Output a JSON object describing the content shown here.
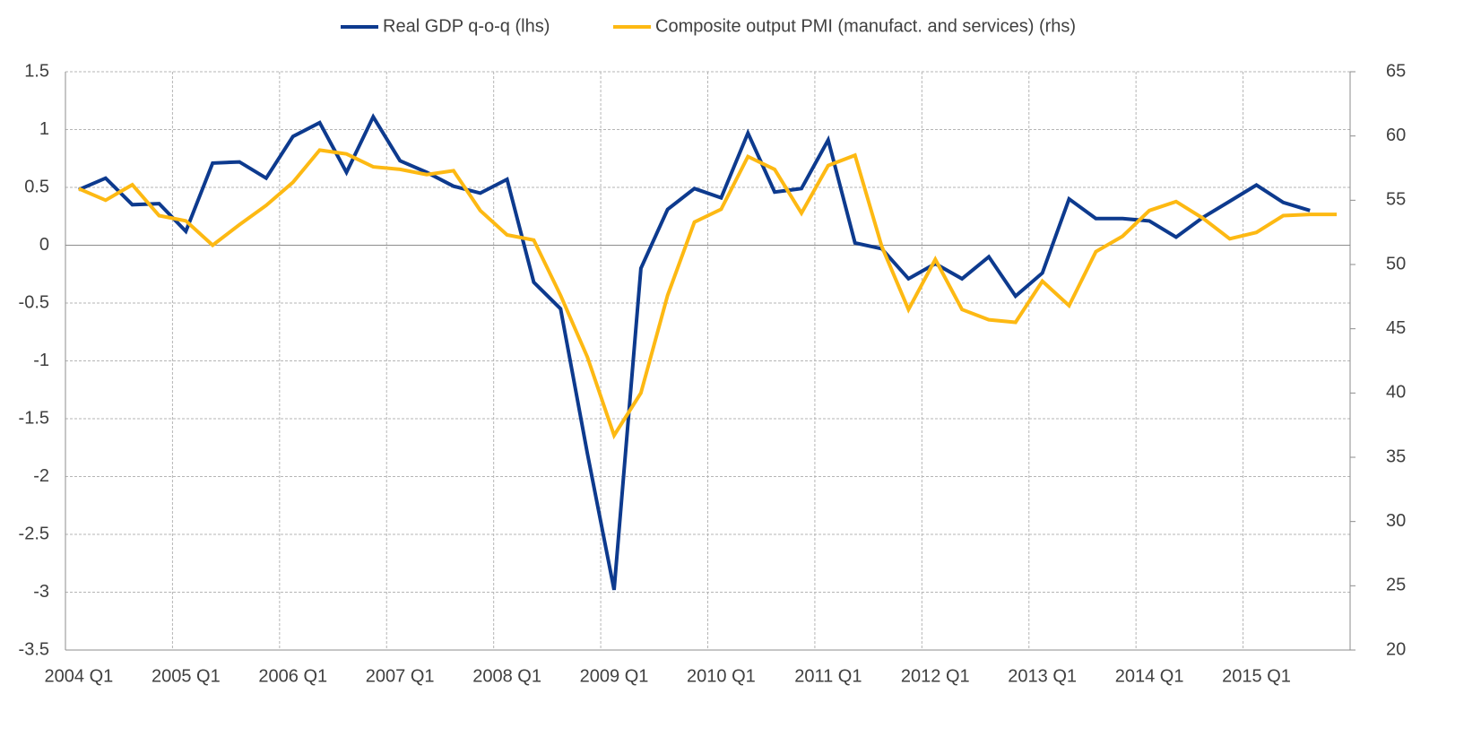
{
  "chart_data": {
    "type": "line",
    "legend": "top",
    "grid": true,
    "categories": [
      "2004 Q1",
      null,
      null,
      null,
      "2005 Q1",
      null,
      null,
      null,
      "2006 Q1",
      null,
      null,
      null,
      "2007 Q1",
      null,
      null,
      null,
      "2008 Q1",
      null,
      null,
      null,
      "2009 Q1",
      null,
      null,
      null,
      "2010 Q1",
      null,
      null,
      null,
      "2011 Q1",
      null,
      null,
      null,
      "2012 Q1",
      null,
      null,
      null,
      "2013 Q1",
      null,
      null,
      null,
      "2014 Q1",
      null,
      null,
      null,
      "2015 Q1",
      null,
      null,
      null
    ],
    "series": [
      {
        "name": "Real GDP q-o-q (lhs)",
        "color": "#0d3a8e",
        "axis": "y",
        "values": [
          0.48,
          0.58,
          0.35,
          0.36,
          0.12,
          0.71,
          0.72,
          0.58,
          0.94,
          1.06,
          0.63,
          1.11,
          0.73,
          0.63,
          0.51,
          0.45,
          0.57,
          -0.32,
          -0.55,
          -1.8,
          -2.98,
          -0.2,
          0.31,
          0.49,
          0.41,
          0.97,
          0.46,
          0.49,
          0.91,
          0.02,
          -0.03,
          -0.29,
          -0.16,
          -0.29,
          -0.1,
          -0.44,
          -0.24,
          0.4,
          0.23,
          0.23,
          0.21,
          0.07,
          0.24,
          0.38,
          0.52,
          0.37,
          0.3,
          null
        ]
      },
      {
        "name": "Composite output PMI (manufact. and services) (rhs)",
        "color": "#fdb913",
        "axis": "y2",
        "values": [
          55.9,
          55.0,
          56.2,
          53.8,
          53.4,
          51.5,
          53.1,
          54.6,
          56.4,
          58.9,
          58.6,
          57.6,
          57.4,
          57.0,
          57.3,
          54.2,
          52.3,
          51.9,
          47.6,
          42.8,
          36.7,
          40.0,
          47.6,
          53.3,
          54.3,
          58.4,
          57.4,
          54.0,
          57.7,
          58.5,
          51.4,
          46.5,
          50.4,
          46.5,
          45.7,
          45.5,
          48.7,
          46.8,
          51.0,
          52.2,
          54.2,
          54.9,
          53.6,
          52.0,
          52.5,
          53.8,
          53.9,
          53.9
        ]
      }
    ],
    "ylim": [
      -3.5,
      1.5
    ],
    "yticks": [
      -3.5,
      -3,
      -2.5,
      -2,
      -1.5,
      -1,
      -0.5,
      0,
      0.5,
      1,
      1.5
    ],
    "y2lim": [
      20,
      65
    ],
    "y2ticks": [
      20,
      25,
      30,
      35,
      40,
      45,
      50,
      55,
      60,
      65
    ]
  }
}
